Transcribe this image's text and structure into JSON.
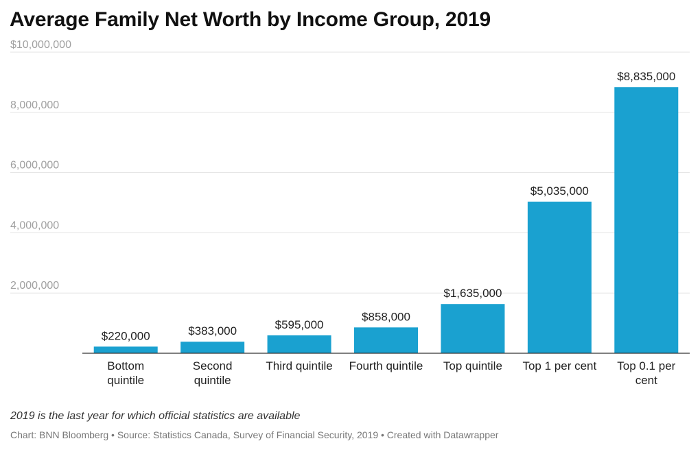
{
  "chart_data": {
    "type": "bar",
    "title": "Average Family Net Worth by Income Group, 2019",
    "categories": [
      [
        "Bottom",
        "quintile"
      ],
      [
        "Second",
        "quintile"
      ],
      [
        "Third quintile"
      ],
      [
        "Fourth quintile"
      ],
      [
        "Top quintile"
      ],
      [
        "Top 1 per cent"
      ],
      [
        "Top 0.1 per",
        "cent"
      ]
    ],
    "values": [
      220000,
      383000,
      595000,
      858000,
      1635000,
      5035000,
      8835000
    ],
    "value_labels": [
      "$220,000",
      "$383,000",
      "$595,000",
      "$858,000",
      "$1,635,000",
      "$5,035,000",
      "$8,835,000"
    ],
    "ylim": [
      0,
      10000000
    ],
    "yticks": [
      2000000,
      4000000,
      6000000,
      8000000,
      10000000
    ],
    "ytick_labels": [
      "2,000,000",
      "4,000,000",
      "6,000,000",
      "8,000,000",
      "$10,000,000"
    ],
    "grid": true,
    "bar_color": "#1aa1d0",
    "xlabel": "",
    "ylabel": ""
  },
  "note": "2019 is the last year for which official statistics are available",
  "footer": "Chart: BNN Bloomberg • Source: Statistics Canada, Survey of Financial Security, 2019 • Created with Datawrapper"
}
